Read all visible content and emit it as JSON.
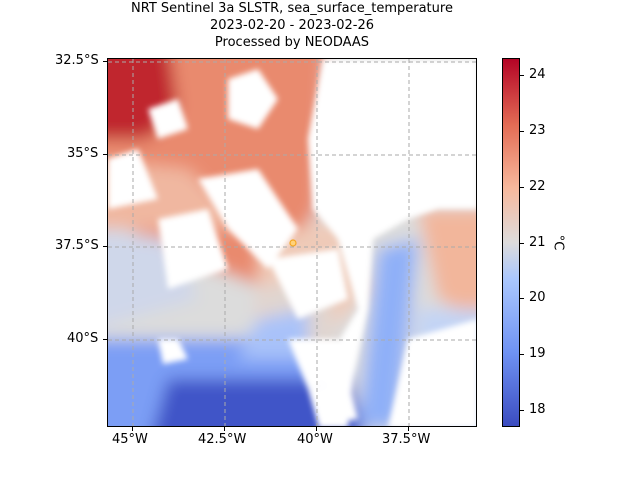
{
  "title": {
    "line1": "NRT Sentinel 3a SLSTR, sea_surface_temperature",
    "line2": "2023-02-20 - 2023-02-26",
    "line3": "Processed by NEODAAS"
  },
  "axes": {
    "x_ticks": [
      "45°W",
      "42.5°W",
      "40°W",
      "37.5°W"
    ],
    "y_ticks": [
      "32.5°S",
      "35°S",
      "37.5°S",
      "40°S"
    ]
  },
  "colorbar": {
    "label": "°C",
    "ticks": [
      "24",
      "23",
      "22",
      "21",
      "20",
      "19",
      "18"
    ],
    "range": [
      17.7,
      24.3
    ],
    "colormap": "coolwarm"
  },
  "marker": {
    "lon": -40.7,
    "lat": -37.4,
    "color": "#f5a623"
  }
}
